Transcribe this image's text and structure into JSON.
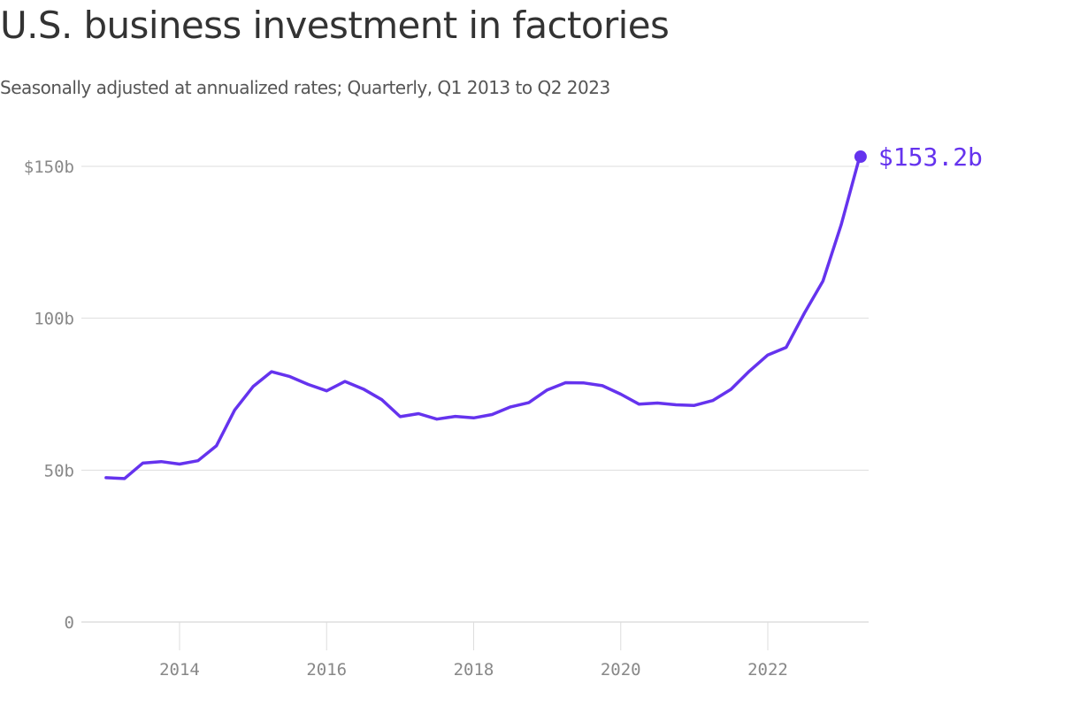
{
  "title": "U.S. business investment in factories",
  "subtitle": "Seasonally adjusted at annualized rates; Quarterly, Q1 2013 to Q2 2023",
  "colors": {
    "line": "#6533ee",
    "grid": "#dddddd",
    "axis": "#cccccc",
    "tick_text": "#888888",
    "title_text": "#333333"
  },
  "chart_data": {
    "type": "line",
    "title": "U.S. business investment in factories",
    "subtitle": "Seasonally adjusted at annualized rates; Quarterly, Q1 2013 to Q2 2023",
    "xlabel": "",
    "ylabel": "",
    "x_ticks": [
      "2014",
      "2016",
      "2018",
      "2020",
      "2022"
    ],
    "y_ticks": [
      "0",
      "50b",
      "100b",
      "$150b"
    ],
    "y_tick_values": [
      0,
      50,
      100,
      150
    ],
    "ylim": [
      0,
      150
    ],
    "grid": true,
    "end_label": "$153.2b",
    "series": [
      {
        "x": [
          "2013-Q1",
          "2013-Q2",
          "2013-Q3",
          "2013-Q4",
          "2014-Q1",
          "2014-Q2",
          "2014-Q3",
          "2014-Q4",
          "2015-Q1",
          "2015-Q2",
          "2015-Q3",
          "2015-Q4",
          "2016-Q1",
          "2016-Q2",
          "2016-Q3",
          "2016-Q4",
          "2017-Q1",
          "2017-Q2",
          "2017-Q3",
          "2017-Q4",
          "2018-Q1",
          "2018-Q2",
          "2018-Q3",
          "2018-Q4",
          "2019-Q1",
          "2019-Q2",
          "2019-Q3",
          "2019-Q4",
          "2020-Q1",
          "2020-Q2",
          "2020-Q3",
          "2020-Q4",
          "2021-Q1",
          "2021-Q2",
          "2021-Q3",
          "2021-Q4",
          "2022-Q1",
          "2022-Q2",
          "2022-Q3",
          "2022-Q4",
          "2023-Q1",
          "2023-Q2"
        ],
        "values": [
          47.5,
          47.2,
          52.3,
          52.8,
          52.0,
          53.1,
          58.0,
          69.8,
          77.5,
          82.4,
          80.8,
          78.2,
          76.1,
          79.2,
          76.7,
          73.2,
          67.6,
          68.6,
          66.8,
          67.7,
          67.2,
          68.3,
          70.8,
          72.2,
          76.4,
          78.8,
          78.7,
          77.8,
          75.0,
          71.7,
          72.1,
          71.5,
          71.3,
          72.9,
          76.6,
          82.6,
          87.9,
          90.4,
          101.8,
          112.2,
          130.9,
          153.2
        ]
      }
    ]
  }
}
